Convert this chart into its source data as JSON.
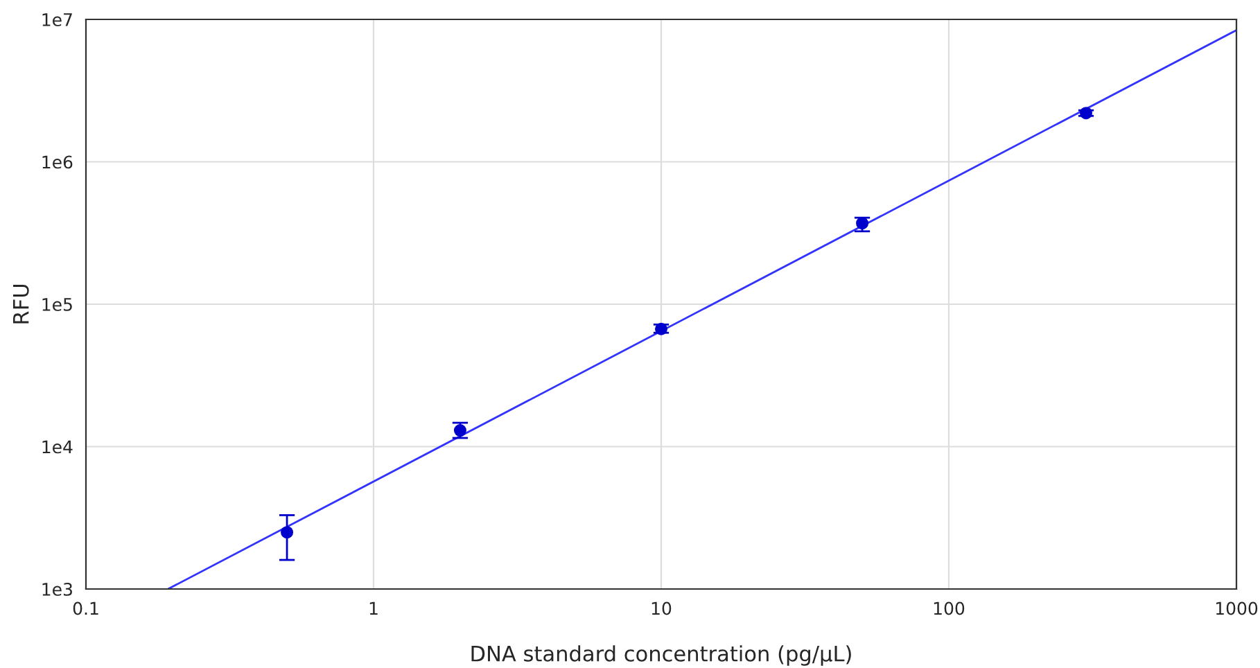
{
  "chart_data": {
    "type": "scatter",
    "xlabel": "DNA standard concentration (pg/µL)",
    "ylabel": "RFU",
    "log": "xy",
    "grid": true,
    "marker": "circle",
    "xlim": [
      0.1,
      1000
    ],
    "xticks": [
      0.1,
      1,
      10,
      100,
      1000
    ],
    "ylim": [
      1000,
      10000000
    ],
    "yticks": [
      {
        "value": 1000,
        "label": "1e3"
      },
      {
        "value": 10000,
        "label": "1e4"
      },
      {
        "value": 100000,
        "label": "1e5"
      },
      {
        "value": 1000000,
        "label": "1e6"
      },
      {
        "value": 10000000,
        "label": "1e7"
      }
    ],
    "series": [
      {
        "color": "#0000cc",
        "x": [
          0.5,
          2,
          10,
          50,
          300
        ],
        "values": [
          2500,
          13000,
          67000,
          370000,
          2200000
        ],
        "errors": [
          [
            1600,
            3300
          ],
          [
            11500,
            14700
          ],
          [
            63000,
            72000
          ],
          [
            325000,
            405000
          ],
          [
            2100000,
            2300000
          ]
        ]
      },
      {
        "type": "line",
        "color": "#3333ff",
        "marker": "none",
        "line_style": "solid",
        "x": [
          0.193,
          1000
        ],
        "values": [
          1000,
          8400000
        ]
      }
    ]
  }
}
